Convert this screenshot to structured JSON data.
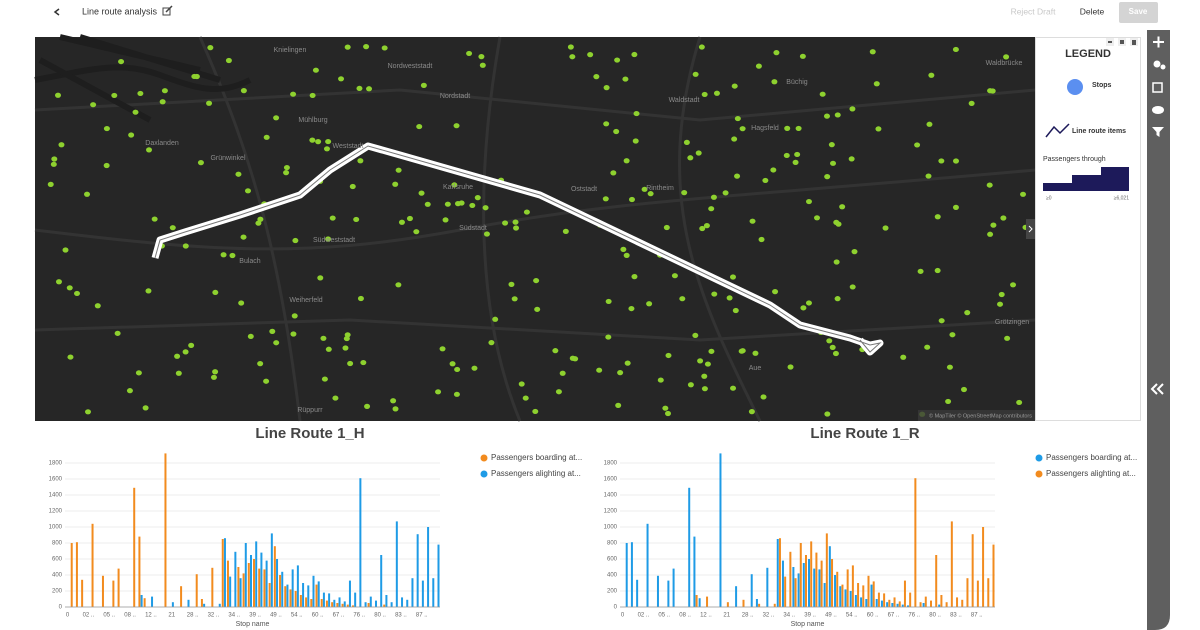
{
  "header": {
    "title": "Line route analysis",
    "actions": [
      "Reject Draft",
      "Delete",
      "Save"
    ]
  },
  "map": {
    "labels": [
      "Knielingen",
      "Nordweststadt",
      "Nordstadt",
      "Mühlburg",
      "Weststadt",
      "Daxlanden",
      "Grünwinkel",
      "Karlsruhe",
      "Oststadt",
      "Rintheim",
      "Waldstadt",
      "Hagsfeld",
      "Büchig",
      "Waldbrücke",
      "Südstadt",
      "Südweststadt",
      "Bulach",
      "Weiherfeld",
      "Rüppurr",
      "Aue",
      "Grötzingen"
    ],
    "attribution": "© MapTiler © OpenStreetMap contributors"
  },
  "legend": {
    "title": "LEGEND",
    "items": [
      "Stops",
      "Line route items"
    ],
    "gradient_title": "Passengers through",
    "gradient_min": "≥0",
    "gradient_max": "≥6,021"
  },
  "chart_data": [
    {
      "type": "bar",
      "title": "Line Route 1_H",
      "x_label": "Stop name",
      "grid": true,
      "categories": [
        "0",
        null,
        null,
        null,
        "02 ..",
        null,
        null,
        null,
        "05 ..",
        null,
        null,
        null,
        "08 ..",
        null,
        null,
        null,
        "12 ..",
        null,
        null,
        null,
        "21",
        null,
        null,
        null,
        "28 ..",
        null,
        null,
        null,
        "32 ..",
        null,
        null,
        null,
        "34 ..",
        null,
        null,
        null,
        "39 ..",
        null,
        null,
        null,
        "49 ..",
        null,
        null,
        null,
        "54 ..",
        null,
        null,
        null,
        "60 ..",
        null,
        null,
        null,
        "67 ..",
        null,
        null,
        null,
        "76 ..",
        null,
        null,
        null,
        "80 ..",
        null,
        null,
        null,
        "83 ..",
        null,
        null,
        null,
        "87 ..",
        null,
        null,
        null
      ],
      "series": [
        {
          "name": "Passengers boarding at...",
          "color": "#f28b1e",
          "values": [
            0,
            800,
            810,
            340,
            0,
            1040,
            0,
            390,
            0,
            330,
            480,
            0,
            0,
            1490,
            880,
            110,
            0,
            0,
            0,
            1920,
            0,
            0,
            260,
            0,
            0,
            410,
            100,
            0,
            490,
            0,
            850,
            580,
            0,
            500,
            420,
            550,
            600,
            480,
            470,
            300,
            760,
            400,
            260,
            220,
            200,
            150,
            120,
            100,
            280,
            100,
            80,
            60,
            50,
            40,
            30,
            20,
            0,
            0,
            50,
            0,
            0,
            30,
            0,
            0,
            0,
            0,
            0,
            0,
            0,
            0,
            0,
            0
          ]
        },
        {
          "name": "Passengers alighting at...",
          "color": "#1e9be6",
          "values": [
            0,
            0,
            0,
            0,
            0,
            0,
            0,
            0,
            0,
            0,
            0,
            0,
            0,
            0,
            150,
            0,
            130,
            0,
            0,
            0,
            60,
            0,
            0,
            90,
            0,
            0,
            40,
            0,
            0,
            40,
            860,
            380,
            690,
            360,
            800,
            650,
            820,
            680,
            580,
            920,
            600,
            440,
            280,
            470,
            520,
            300,
            270,
            390,
            320,
            180,
            170,
            90,
            120,
            70,
            330,
            180,
            1610,
            60,
            130,
            80,
            650,
            150,
            60,
            1070,
            120,
            90,
            360,
            910,
            330,
            1000,
            360,
            780
          ]
        }
      ],
      "ylim": [
        0,
        1900
      ],
      "yticks": [
        0,
        200,
        400,
        600,
        800,
        1000,
        1200,
        1400,
        1600,
        1800
      ]
    },
    {
      "type": "bar",
      "title": "Line Route 1_R",
      "x_label": "Stop name",
      "grid": true,
      "categories": [
        "0",
        null,
        null,
        null,
        "02 ..",
        null,
        null,
        null,
        "05 ..",
        null,
        null,
        null,
        "08 ..",
        null,
        null,
        null,
        "12 ..",
        null,
        null,
        null,
        "21",
        null,
        null,
        null,
        "28 ..",
        null,
        null,
        null,
        "32 ..",
        null,
        null,
        null,
        "34 ..",
        null,
        null,
        null,
        "39 ..",
        null,
        null,
        null,
        "49 ..",
        null,
        null,
        null,
        "54 ..",
        null,
        null,
        null,
        "60 ..",
        null,
        null,
        null,
        "67 ..",
        null,
        null,
        null,
        "76 ..",
        null,
        null,
        null,
        "80 ..",
        null,
        null,
        null,
        "83 ..",
        null,
        null,
        null,
        "87 ..",
        null,
        null,
        null
      ],
      "series": [
        {
          "name": "Passengers boarding at...",
          "color": "#1e9be6",
          "values": [
            0,
            800,
            810,
            340,
            0,
            1040,
            0,
            390,
            0,
            330,
            480,
            0,
            0,
            1490,
            880,
            110,
            0,
            0,
            0,
            1920,
            0,
            0,
            260,
            0,
            0,
            410,
            100,
            0,
            490,
            0,
            850,
            580,
            0,
            500,
            420,
            550,
            600,
            480,
            470,
            300,
            760,
            400,
            260,
            220,
            200,
            150,
            120,
            100,
            280,
            100,
            80,
            60,
            50,
            40,
            30,
            20,
            0,
            0,
            50,
            0,
            0,
            30,
            0,
            0,
            0,
            0,
            0,
            0,
            0,
            0,
            0,
            0
          ]
        },
        {
          "name": "Passengers alighting at...",
          "color": "#f28b1e",
          "values": [
            0,
            0,
            0,
            0,
            0,
            0,
            0,
            0,
            0,
            0,
            0,
            0,
            0,
            0,
            150,
            0,
            130,
            0,
            0,
            0,
            60,
            0,
            0,
            90,
            0,
            0,
            40,
            0,
            0,
            40,
            860,
            380,
            690,
            360,
            800,
            650,
            820,
            680,
            580,
            920,
            600,
            440,
            280,
            470,
            520,
            300,
            270,
            390,
            320,
            180,
            170,
            90,
            120,
            70,
            330,
            180,
            1610,
            60,
            130,
            80,
            650,
            150,
            60,
            1070,
            120,
            90,
            360,
            910,
            330,
            1000,
            360,
            780
          ]
        }
      ],
      "ylim": [
        0,
        1900
      ],
      "yticks": [
        0,
        200,
        400,
        600,
        800,
        1000,
        1200,
        1400,
        1600,
        1800
      ]
    }
  ]
}
